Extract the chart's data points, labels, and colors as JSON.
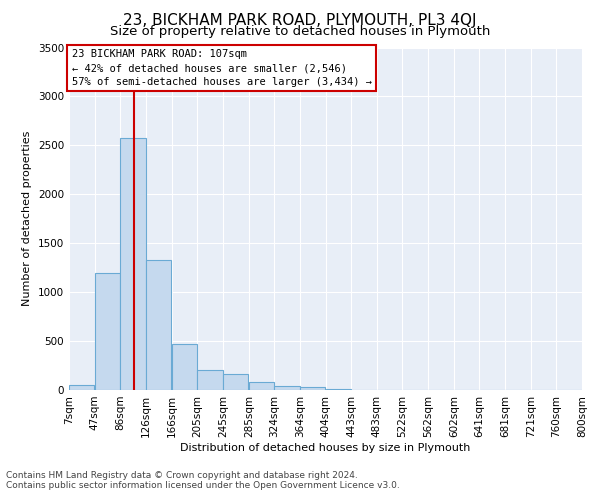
{
  "title": "23, BICKHAM PARK ROAD, PLYMOUTH, PL3 4QJ",
  "subtitle": "Size of property relative to detached houses in Plymouth",
  "xlabel": "Distribution of detached houses by size in Plymouth",
  "ylabel": "Number of detached properties",
  "footer_line1": "Contains HM Land Registry data © Crown copyright and database right 2024.",
  "footer_line2": "Contains public sector information licensed under the Open Government Licence v3.0.",
  "annotation_line1": "23 BICKHAM PARK ROAD: 107sqm",
  "annotation_line2": "← 42% of detached houses are smaller (2,546)",
  "annotation_line3": "57% of semi-detached houses are larger (3,434) →",
  "bins": [
    7,
    47,
    86,
    126,
    166,
    205,
    245,
    285,
    324,
    364,
    404,
    443,
    483,
    522,
    562,
    602,
    641,
    681,
    721,
    760,
    800
  ],
  "bin_labels": [
    "7sqm",
    "47sqm",
    "86sqm",
    "126sqm",
    "166sqm",
    "205sqm",
    "245sqm",
    "285sqm",
    "324sqm",
    "364sqm",
    "404sqm",
    "443sqm",
    "483sqm",
    "522sqm",
    "562sqm",
    "602sqm",
    "641sqm",
    "681sqm",
    "721sqm",
    "760sqm",
    "800sqm"
  ],
  "counts": [
    55,
    1200,
    2580,
    1330,
    470,
    200,
    160,
    80,
    40,
    30,
    10,
    5,
    5,
    0,
    0,
    0,
    0,
    0,
    0,
    0
  ],
  "bar_color": "#c5d9ee",
  "bar_edge_color": "#6aaad4",
  "vline_color": "#cc0000",
  "vline_x": 107,
  "ylim": [
    0,
    3500
  ],
  "yticks": [
    0,
    500,
    1000,
    1500,
    2000,
    2500,
    3000,
    3500
  ],
  "plot_bg_color": "#e8eef7",
  "grid_color": "#ffffff",
  "annotation_box_edge_color": "#cc0000",
  "title_fontsize": 11,
  "subtitle_fontsize": 9.5,
  "axis_label_fontsize": 8,
  "tick_fontsize": 7.5,
  "annotation_fontsize": 7.5,
  "footer_fontsize": 6.5
}
